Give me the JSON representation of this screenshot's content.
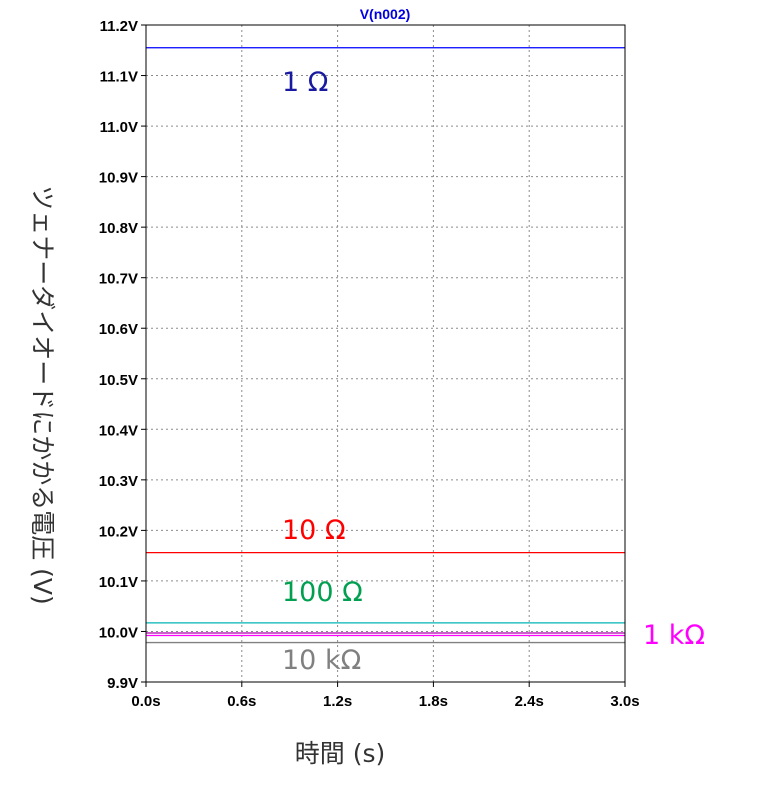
{
  "chart_data": {
    "type": "line",
    "title": "V(n002)",
    "title_color": "#0000e0",
    "xlabel": "時間 (s)",
    "ylabel": "ツェナーダイオードにかかる電圧 (V)",
    "xlim": [
      0,
      3.0
    ],
    "ylim": [
      9.9,
      11.2
    ],
    "x_ticks": [
      0,
      0.6,
      1.2,
      1.8,
      2.4,
      3.0
    ],
    "x_tick_labels": [
      "0.0s",
      "0.6s",
      "1.2s",
      "1.8s",
      "2.4s",
      "3.0s"
    ],
    "y_ticks": [
      9.9,
      10.0,
      10.1,
      10.2,
      10.3,
      10.4,
      10.5,
      10.6,
      10.7,
      10.8,
      10.9,
      11.0,
      11.1,
      11.2
    ],
    "y_tick_labels": [
      "9.9V",
      "10.0V",
      "10.1V",
      "10.2V",
      "10.3V",
      "10.4V",
      "10.5V",
      "10.6V",
      "10.7V",
      "10.8V",
      "10.9V",
      "11.0V",
      "11.1V",
      "11.2V"
    ],
    "grid": true,
    "series": [
      {
        "x": [
          0,
          3.0
        ],
        "y": [
          11.155,
          11.155
        ],
        "color": "#0000ff"
      },
      {
        "x": [
          0,
          3.0
        ],
        "y": [
          10.156,
          10.156
        ],
        "color": "#ff0000"
      },
      {
        "x": [
          0,
          3.0
        ],
        "y": [
          10.017,
          10.017
        ],
        "color": "#00b4b4"
      },
      {
        "x": [
          0,
          3.0
        ],
        "y": [
          9.997,
          9.997
        ],
        "color": "#b000b0"
      },
      {
        "x": [
          0,
          3.0
        ],
        "y": [
          9.992,
          9.992
        ],
        "color": "#ff00ff"
      },
      {
        "x": [
          0,
          3.0
        ],
        "y": [
          9.978,
          9.978
        ],
        "color": "#808080"
      }
    ],
    "annotations": [
      {
        "text": "1 Ω",
        "color": "#1a1aa0"
      },
      {
        "text": "10 Ω",
        "color": "#ff0000"
      },
      {
        "text": "100 Ω",
        "color": "#00a050"
      },
      {
        "text": "1 kΩ",
        "color": "#ff00ff"
      },
      {
        "text": "10 kΩ",
        "color": "#808080"
      }
    ]
  }
}
